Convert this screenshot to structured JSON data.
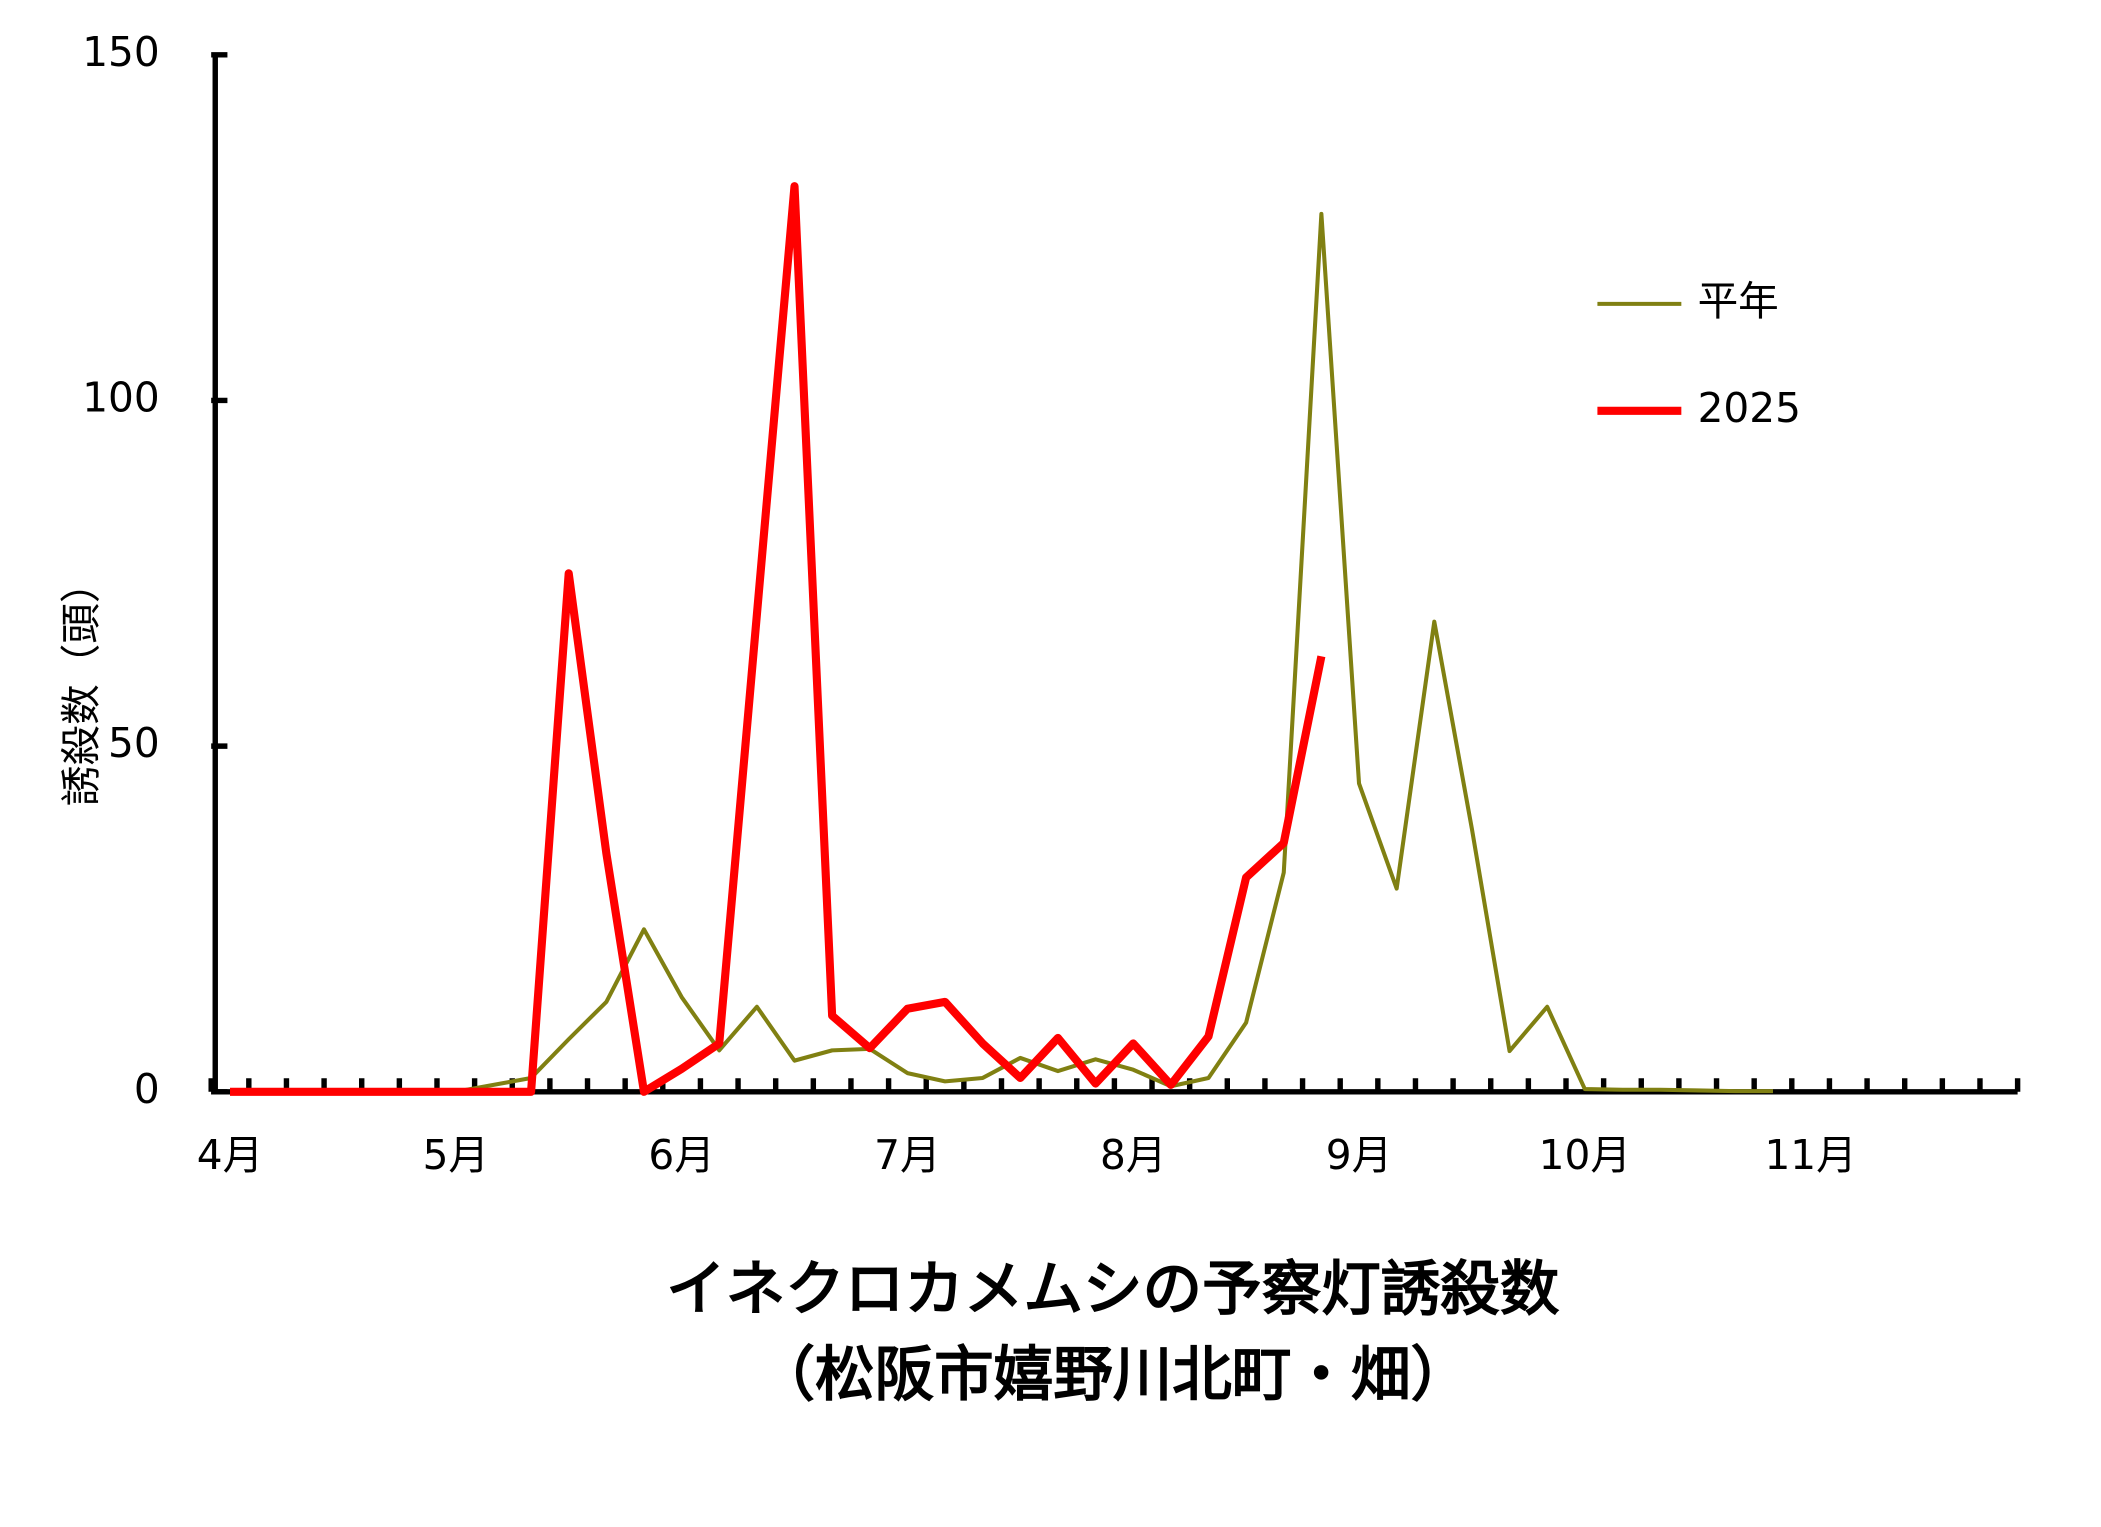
{
  "chart_data": {
    "type": "line",
    "title": "イネクロカメムシの予察灯誘殺数",
    "subtitle": "（松阪市嬉野川北町・畑）",
    "y_label": "誘殺数（頭）",
    "categories": [
      "4月",
      null,
      null,
      null,
      null,
      null,
      "5月",
      null,
      null,
      null,
      null,
      null,
      "6月",
      null,
      null,
      null,
      null,
      null,
      "7月",
      null,
      null,
      null,
      null,
      null,
      "8月",
      null,
      null,
      null,
      null,
      null,
      "9月",
      null,
      null,
      null,
      null,
      null,
      "10月",
      null,
      null,
      null,
      null,
      null,
      "11月",
      null,
      null,
      null,
      null,
      null
    ],
    "series": [
      {
        "name": "平年",
        "color": "#808012",
        "values": [
          0,
          0,
          0,
          0,
          0,
          0,
          0,
          1,
          2,
          7.6,
          13,
          23.5,
          13.7,
          6,
          12.3,
          4.5,
          6,
          6.2,
          2.7,
          1.5,
          2,
          4.9,
          3,
          4.7,
          3.2,
          0.8,
          2,
          10,
          31.7,
          127,
          44.6,
          29.4,
          68,
          38,
          5.9,
          12.3,
          0.4,
          0.3,
          0.3,
          0.2,
          0.1,
          0.1,
          null,
          null,
          null,
          null,
          null,
          null
        ]
      },
      {
        "name": "2025",
        "color": "#ff0000",
        "values": [
          0,
          0,
          0,
          0,
          0,
          0,
          0,
          0,
          0,
          75,
          34.5,
          0,
          3.3,
          7,
          69,
          131,
          11,
          6.3,
          12,
          13,
          7,
          2,
          7.8,
          1.2,
          7,
          1,
          8,
          31,
          36,
          63,
          null,
          null,
          null,
          null,
          null,
          null,
          null,
          null,
          null,
          null,
          null,
          null,
          null,
          null,
          null,
          null,
          null,
          null
        ]
      }
    ],
    "ylim": [
      0,
      150
    ],
    "yticks": [
      0,
      50,
      100,
      150
    ],
    "legend": "upper right"
  }
}
